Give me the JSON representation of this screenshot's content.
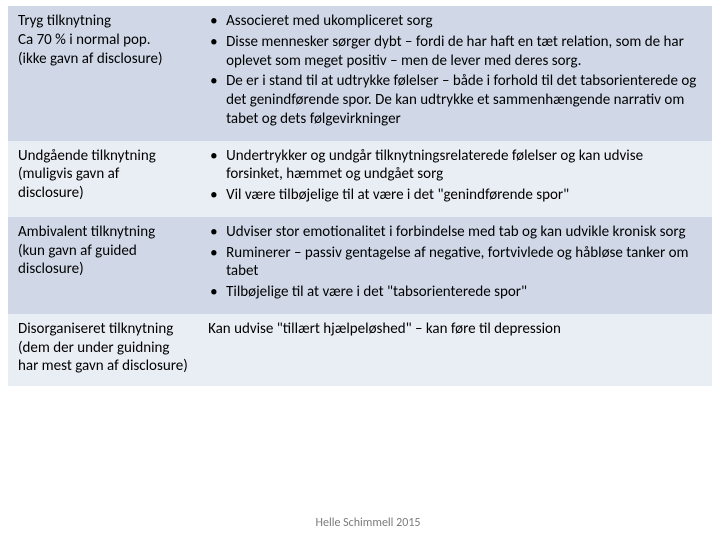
{
  "colors": {
    "band_a": "#d0d8e8",
    "band_b": "#e9edf4",
    "text": "#000000",
    "footer_text": "#7b7b7b",
    "background": "#ffffff"
  },
  "typography": {
    "cell_fontsize_pt": 11,
    "footer_fontsize_pt": 9,
    "font_family": "Calibri"
  },
  "layout": {
    "left_col_pct": 27,
    "right_col_pct": 73
  },
  "rows": [
    {
      "band": "a",
      "left": "Tryg tilknytning\nCa 70 % i normal pop.\n(ikke gavn af disclosure)",
      "right_type": "bullets",
      "right": [
        "Associeret med ukompliceret sorg",
        "Disse mennesker sørger dybt – fordi de har haft en tæt relation, som de har oplevet som meget positiv – men de lever med deres sorg.",
        "De er i stand til at udtrykke følelser – både i forhold til det tabsorienterede og det genindførende spor. De kan udtrykke et sammenhængende narrativ om tabet og dets følgevirkninger"
      ]
    },
    {
      "band": "b",
      "left": "Undgående tilknytning\n(muligvis gavn af disclosure)",
      "right_type": "bullets",
      "right": [
        "Undertrykker og undgår tilknytningsrelaterede følelser og kan udvise forsinket, hæmmet og undgået sorg",
        "Vil være tilbøjelige til at være i det \"genindførende spor\""
      ]
    },
    {
      "band": "a",
      "left": "Ambivalent tilknytning\n(kun gavn af guided disclosure)",
      "right_type": "bullets",
      "right": [
        "Udviser stor emotionalitet i forbindelse med tab og kan udvikle kronisk sorg",
        "Ruminerer – passiv gentagelse af negative, fortvivlede og håbløse tanker om tabet",
        "Tilbøjelige til at være i det \"tabsorienterede spor\""
      ]
    },
    {
      "band": "b",
      "left": "Disorganiseret tilknytning\n(dem der under guidning har mest gavn af disclosure)",
      "right_type": "plain",
      "right_plain": "Kan udvise \"tillært hjælpeløshed\" – kan føre til depression"
    }
  ],
  "footer": "Helle Schimmell 2015"
}
